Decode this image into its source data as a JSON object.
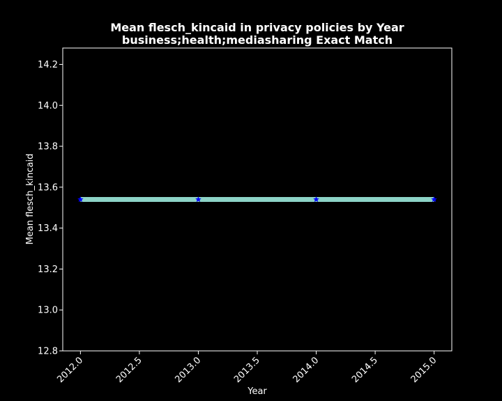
{
  "chart_data": {
    "type": "line",
    "title": "Mean flesch_kincaid in privacy policies by Year",
    "subtitle": "business;health;mediasharing Exact Match",
    "xlabel": "Year",
    "ylabel": "Mean flesch_kincaid",
    "xlim": [
      2011.85,
      2015.15
    ],
    "ylim": [
      12.8,
      14.28
    ],
    "xticks": [
      "2012.0",
      "2012.5",
      "2013.0",
      "2013.5",
      "2014.0",
      "2014.5",
      "2015.0"
    ],
    "yticks": [
      "12.8",
      "13.0",
      "13.2",
      "13.4",
      "13.6",
      "13.8",
      "14.0",
      "14.2"
    ],
    "grid": false,
    "series": [
      {
        "x": [
          2012.0,
          2013.0,
          2014.0,
          2015.0
        ],
        "y": [
          13.54,
          13.54,
          13.54,
          13.54
        ],
        "line_color": "#8dd3c7",
        "marker": "star",
        "marker_color": "#0000ff"
      }
    ],
    "background": "#000000",
    "foreground": "#ffffff"
  }
}
